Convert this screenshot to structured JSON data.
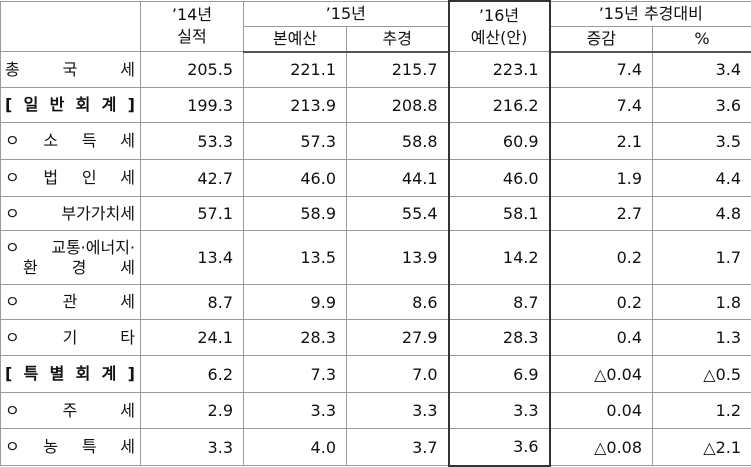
{
  "header": {
    "col_14": [
      "’14년",
      "실적"
    ],
    "col_15": "’15년",
    "col_15_sub": [
      "본예산",
      "추경"
    ],
    "col_16": [
      "’16년",
      "예산(안)"
    ],
    "col_cmp": "’15년 추경대비",
    "col_cmp_sub": [
      "증감",
      "%"
    ]
  },
  "table": {
    "rows": [
      {
        "label": [
          "총 국 세"
        ],
        "cells": [
          "205.5",
          "221.1",
          "215.7",
          "223.1",
          "7.4",
          "3.4"
        ]
      },
      {
        "label": [
          "[ 일 반 회 계 ]"
        ],
        "cells": [
          "199.3",
          "213.9",
          "208.8",
          "216.2",
          "7.4",
          "3.6"
        ]
      },
      {
        "label": [
          "ㅇ 소 득 세"
        ],
        "cells": [
          "53.3",
          "57.3",
          "58.8",
          "60.9",
          "2.1",
          "3.5"
        ]
      },
      {
        "label": [
          "ㅇ 법 인 세"
        ],
        "cells": [
          "42.7",
          "46.0",
          "44.1",
          "46.0",
          "1.9",
          "4.4"
        ]
      },
      {
        "label": [
          "ㅇ 부가가치세"
        ],
        "cells": [
          "57.1",
          "58.9",
          "55.4",
          "58.1",
          "2.7",
          "4.8"
        ]
      },
      {
        "label": [
          "ㅇ 교통·에너지·",
          "환 경 세"
        ],
        "cells": [
          "13.4",
          "13.5",
          "13.9",
          "14.2",
          "0.2",
          "1.7"
        ]
      },
      {
        "label": [
          "ㅇ 관 세"
        ],
        "cells": [
          "8.7",
          "9.9",
          "8.6",
          "8.7",
          "0.2",
          "1.8"
        ]
      },
      {
        "label": [
          "ㅇ 기 타"
        ],
        "cells": [
          "24.1",
          "28.3",
          "27.9",
          "28.3",
          "0.4",
          "1.3"
        ]
      },
      {
        "label": [
          "[ 특 별 회 계 ]"
        ],
        "cells": [
          "6.2",
          "7.3",
          "7.0",
          "6.9",
          "△0.04",
          "△0.5"
        ]
      },
      {
        "label": [
          "ㅇ 주 세"
        ],
        "cells": [
          "2.9",
          "3.3",
          "3.3",
          "3.3",
          "0.04",
          "1.2"
        ]
      },
      {
        "label": [
          "ㅇ 농 특 세"
        ],
        "cells": [
          "3.3",
          "4.0",
          "3.7",
          "3.6",
          "△0.08",
          "△2.1"
        ]
      }
    ]
  }
}
